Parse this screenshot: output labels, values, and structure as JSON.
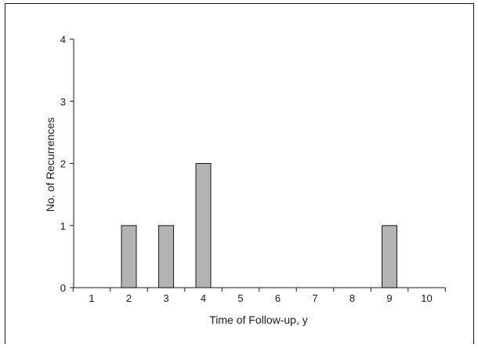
{
  "chart_data": {
    "type": "bar",
    "title": "",
    "xlabel": "Time of Follow-up, y",
    "ylabel": "No. of Recurrences",
    "categories": [
      "1",
      "2",
      "3",
      "4",
      "5",
      "6",
      "7",
      "8",
      "9",
      "10"
    ],
    "values": [
      0,
      1,
      1,
      2,
      0,
      0,
      0,
      0,
      1,
      0
    ],
    "yticks": [
      "0",
      "1",
      "2",
      "3",
      "4"
    ],
    "ylim": [
      0,
      4
    ],
    "grid": false,
    "legend": "none",
    "colors": {
      "bar_fill": "#b3b3b3",
      "bar_stroke": "#1a1a1a",
      "axis": "#1a1a1a",
      "frame": "#1a1a1a"
    }
  }
}
